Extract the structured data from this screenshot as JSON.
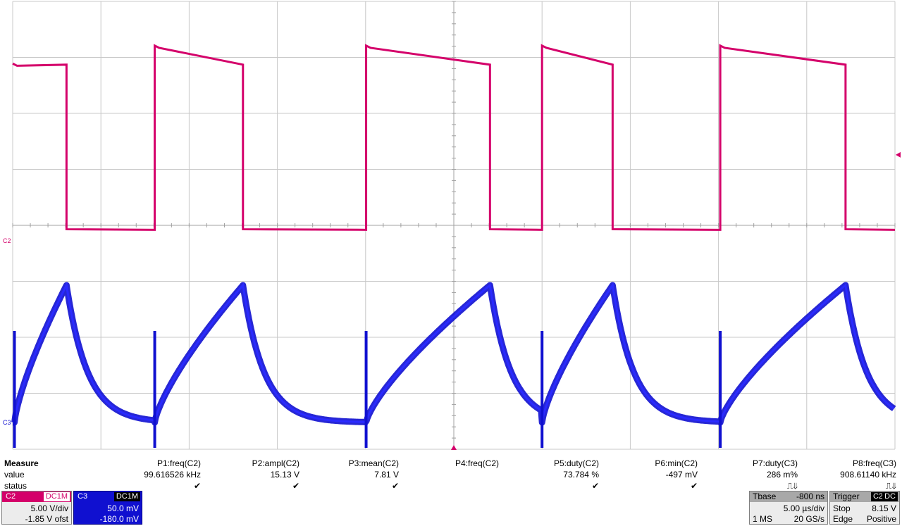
{
  "chart_data": {
    "type": "line",
    "title": "",
    "grid": true,
    "grid_divisions": {
      "x": 10,
      "y": 8
    },
    "x_units": "µs",
    "x_range": [
      -25,
      25
    ],
    "series": [
      {
        "channel_label": "C2",
        "color": "#d4006a",
        "unit": "V",
        "volts_per_div": 5.0,
        "offset_v": -1.85,
        "y_range": [
          -18.15,
          21.85
        ],
        "points": [
          [
            -25,
            16.3
          ],
          [
            -21.96,
            16.3
          ],
          [
            -21.93,
            1.3
          ],
          [
            -16.95,
            1.3
          ],
          [
            -16.93,
            17.6
          ],
          [
            -16.6,
            17.3
          ],
          [
            -11.95,
            16.8
          ],
          [
            -11.93,
            1.6
          ],
          [
            -5.0,
            1.7
          ],
          [
            -4.97,
            17.6
          ],
          [
            -2,
            16.8
          ],
          [
            0,
            16.4
          ],
          [
            1.95,
            16.3
          ],
          [
            1.97,
            1.5
          ],
          [
            -0.0,
            1.5
          ]
        ],
        "periods": [
          {
            "start_us": -25.0,
            "high_us": 0,
            "low_start_us": -21.95,
            "low_end_us": -16.95
          },
          {
            "start_us": -16.95,
            "high_us": 5.0
          },
          {
            "start_us": -4.97,
            "high_us": 7.0
          },
          {
            "start_us": 5.05,
            "high_us": 5.0
          },
          {
            "start_us": 15.1,
            "high_us": 7.0
          },
          {
            "start_us": 25.1,
            "high_us": 5.0
          }
        ]
      },
      {
        "channel_label": "C3",
        "color": "#1010d0",
        "unit": "mV",
        "volts_per_div": 50.0,
        "offset_mv": -180.0
      }
    ]
  },
  "trace_markers": {
    "c2_label": "C2",
    "c3_label": "C3"
  },
  "measure": {
    "title": "Measure",
    "row_value": "value",
    "row_status": "status",
    "params": [
      {
        "name": "P1:freq(C2)",
        "value": "99.616526 kHz",
        "status": "✔"
      },
      {
        "name": "P2:ampl(C2)",
        "value": "15.13 V",
        "status": "✔"
      },
      {
        "name": "P3:mean(C2)",
        "value": "7.81 V",
        "status": "✔"
      },
      {
        "name": "P4:freq(C2)",
        "value": "",
        "status": ""
      },
      {
        "name": "P5:duty(C2)",
        "value": "73.784 %",
        "status": "✔"
      },
      {
        "name": "P6:min(C2)",
        "value": "-497 mV",
        "status": "✔"
      },
      {
        "name": "P7:duty(C3)",
        "value": "286 m%",
        "status": "⎍⇓"
      },
      {
        "name": "P8:freq(C3)",
        "value": "908.61140 kHz",
        "status": "⎍⇓"
      }
    ]
  },
  "channels": {
    "c2": {
      "label": "C2",
      "coupling": "DC1M",
      "scale": "5.00 V/div",
      "offset": "-1.85 V ofst",
      "color": "#d4006a"
    },
    "c3": {
      "label": "C3",
      "coupling": "DC1M",
      "scale": "50.0 mV",
      "offset": "-180.0 mV",
      "color": "#1010d0"
    }
  },
  "timebase": {
    "label": "Tbase",
    "delay": "-800 ns",
    "scale": "5.00 µs/div",
    "samples": "1 MS",
    "rate": "20 GS/s"
  },
  "trigger": {
    "label": "Trigger",
    "channel": "C2",
    "coupling": "DC",
    "mode": "Stop",
    "level": "8.15 V",
    "type": "Edge",
    "slope": "Positive"
  }
}
